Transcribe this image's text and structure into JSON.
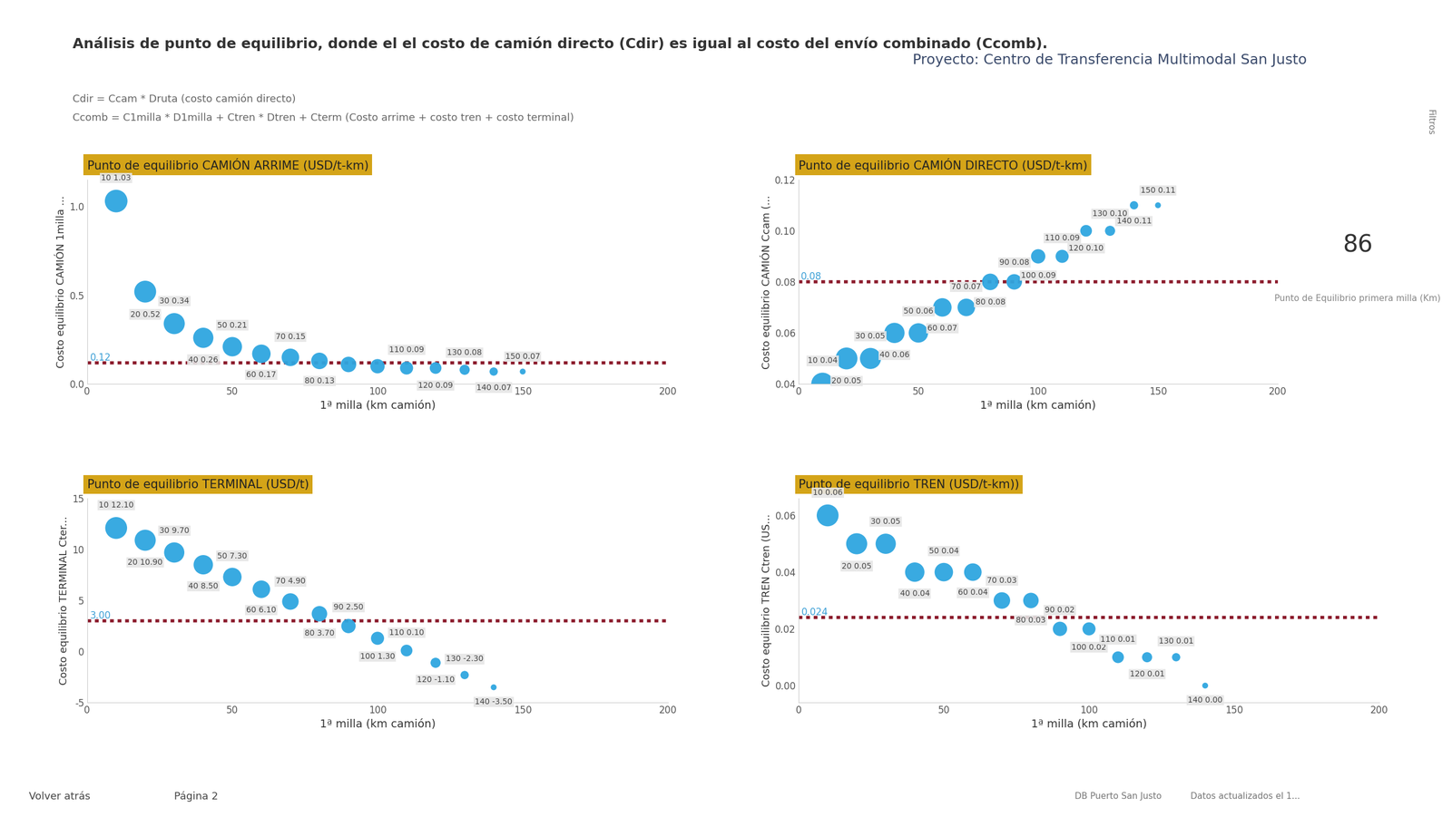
{
  "header": {
    "title": "Análisis de punto de equilibrio, donde el el costo de camión directo (Cdir) es igual al costo del envío combinado (Ccomb).",
    "formula_1": "Cdir = Ccam * Druta (costo camión directo)",
    "formula_2": "Ccomb = C1milla * D1milla + Ctren * Dtren + Cterm (Costo arrime + costo tren + costo terminal)",
    "project": "Proyecto: Centro de Transferencia Multimodal San Justo"
  },
  "kpi": {
    "value": 86,
    "label": "Punto de Equilibrio primera milla (Km)"
  },
  "footer": {
    "back": "Volver atrás",
    "page": "Página 2",
    "source": "DB Puerto San Justo",
    "updated": "Datos actualizados el 1...",
    "filters": "Filtros"
  },
  "chart_data": [
    {
      "type": "scatter",
      "title": "Punto de equilibrio CAMIÓN ARRIME (USD/t-km)",
      "x_label": "1ª milla (km camión)",
      "y_label": "Costo equilibrio CAMIÓN 1milla ...",
      "x": [
        10,
        20,
        30,
        40,
        50,
        60,
        70,
        80,
        90,
        100,
        110,
        120,
        130,
        140,
        150
      ],
      "values": [
        1.03,
        0.52,
        0.34,
        0.26,
        0.21,
        0.17,
        0.15,
        0.13,
        0.11,
        0.1,
        0.09,
        0.09,
        0.08,
        0.07,
        0.07
      ],
      "value_labels": [
        "10 1.03",
        "20 0.52",
        "30 0.34",
        "40 0.26",
        "50 0.21",
        "60 0.17",
        "70 0.15",
        "80 0.13",
        null,
        null,
        "110 0.09",
        "120 0.09",
        "130 0.08",
        "140 0.07",
        "150 0.07"
      ],
      "sizes": [
        15,
        14,
        13,
        12,
        11,
        10,
        9,
        8,
        7,
        6,
        5,
        4,
        3,
        2,
        1
      ],
      "threshold": {
        "value": 0.12,
        "label": "0.12"
      },
      "xlim": [
        0,
        200
      ],
      "xticks": [
        0,
        50,
        100,
        150,
        200
      ],
      "ylim": [
        0,
        1.15
      ],
      "yticks": [
        {
          "value": 0,
          "label": "0.0"
        },
        {
          "value": 0.5,
          "label": "0.5"
        },
        {
          "value": 1.0,
          "label": "1.0"
        }
      ],
      "color": "#2ea6e0",
      "data_labels": true,
      "grid": false
    },
    {
      "type": "scatter",
      "title": "Punto de equilibrio CAMIÓN DIRECTO (USD/t-km)",
      "x_label": "1ª milla (km camión)",
      "y_label": "Costo equilibrio CAMIÓN Ccam (...",
      "x": [
        10,
        20,
        30,
        40,
        50,
        60,
        70,
        80,
        90,
        100,
        110,
        120,
        130,
        140,
        150
      ],
      "values": [
        0.04,
        0.05,
        0.05,
        0.06,
        0.06,
        0.07,
        0.07,
        0.08,
        0.08,
        0.09,
        0.09,
        0.1,
        0.1,
        0.11,
        0.11
      ],
      "value_labels": [
        "10 0.04",
        "20 0.05",
        "30 0.05",
        "40 0.06",
        "50 0.06",
        "60 0.07",
        "70 0.07",
        "80 0.08",
        "90 0.08",
        "100 0.09",
        "110 0.09",
        "120 0.10",
        "130 0.10",
        "140 0.11",
        "150 0.11"
      ],
      "sizes": [
        15,
        14,
        13,
        12,
        11,
        10,
        9,
        8,
        7,
        6,
        5,
        4,
        3,
        2,
        1
      ],
      "threshold": {
        "value": 0.08,
        "label": "0.08"
      },
      "xlim": [
        0,
        200
      ],
      "xticks": [
        0,
        50,
        100,
        150,
        200
      ],
      "ylim": [
        0.04,
        0.12
      ],
      "yticks": [
        0.04,
        0.06,
        0.08,
        {
          "value": 0.1,
          "label": "0.10"
        },
        0.12
      ],
      "color": "#2ea6e0",
      "data_labels": true,
      "grid": false
    },
    {
      "type": "scatter",
      "title": "Punto de equilibrio TERMINAL (USD/t)",
      "x_label": "1ª milla (km camión)",
      "y_label": "Costo equilibrio TERMINAL Cter...",
      "x": [
        10,
        20,
        30,
        40,
        50,
        60,
        70,
        80,
        90,
        100,
        110,
        120,
        130,
        140
      ],
      "values": [
        12.1,
        10.9,
        9.7,
        8.5,
        7.3,
        6.1,
        4.9,
        3.7,
        2.5,
        1.3,
        0.1,
        -1.1,
        -2.3,
        -3.5
      ],
      "value_labels": [
        "10 12.10",
        "20 10.90",
        "30 9.70",
        "40 8.50",
        "50 7.30",
        "60 6.10",
        "70 4.90",
        "80 3.70",
        "90 2.50",
        "100 1.30",
        "110 0.10",
        "120 -1.10",
        "130 -2.30",
        "140 -3.50"
      ],
      "sizes": [
        14,
        13,
        12,
        11,
        10,
        9,
        8,
        7,
        6,
        5,
        4,
        3,
        2,
        1
      ],
      "threshold": {
        "value": 3.0,
        "label": "3.00"
      },
      "xlim": [
        0,
        200
      ],
      "xticks": [
        0,
        50,
        100,
        150,
        200
      ],
      "ylim": [
        -5,
        15
      ],
      "yticks": [
        -5,
        0,
        5,
        10,
        15
      ],
      "color": "#2ea6e0",
      "data_labels": true,
      "grid": false
    },
    {
      "type": "scatter",
      "title": "Punto de equilibrio TREN (USD/t-km))",
      "x_label": "1ª milla (km camión)",
      "y_label": "Costo equilibrio TREN Ctren (US...",
      "x": [
        10,
        20,
        30,
        40,
        50,
        60,
        70,
        80,
        90,
        100,
        110,
        120,
        130,
        140
      ],
      "values": [
        0.06,
        0.05,
        0.05,
        0.04,
        0.04,
        0.04,
        0.03,
        0.03,
        0.02,
        0.02,
        0.01,
        0.01,
        0.01,
        0.0
      ],
      "value_labels": [
        "10 0.06",
        "20 0.05",
        "30 0.05",
        "40 0.04",
        "50 0.04",
        "60 0.04",
        "70 0.03",
        "80 0.03",
        "90 0.02",
        "100 0.02",
        "110 0.01",
        "120 0.01",
        "130 0.01",
        "140 0.00"
      ],
      "sizes": [
        14,
        13,
        12,
        11,
        10,
        9,
        8,
        7,
        6,
        5,
        4,
        3,
        2,
        1
      ],
      "threshold": {
        "value": 0.024,
        "label": "0.024"
      },
      "xlim": [
        0,
        200
      ],
      "xticks": [
        0,
        50,
        100,
        150,
        200
      ],
      "ylim": [
        -0.006,
        0.066
      ],
      "yticks": [
        {
          "value": 0,
          "label": "0.00"
        },
        0.02,
        0.04,
        0.06
      ],
      "color": "#2ea6e0",
      "data_labels": true,
      "grid": false
    }
  ]
}
